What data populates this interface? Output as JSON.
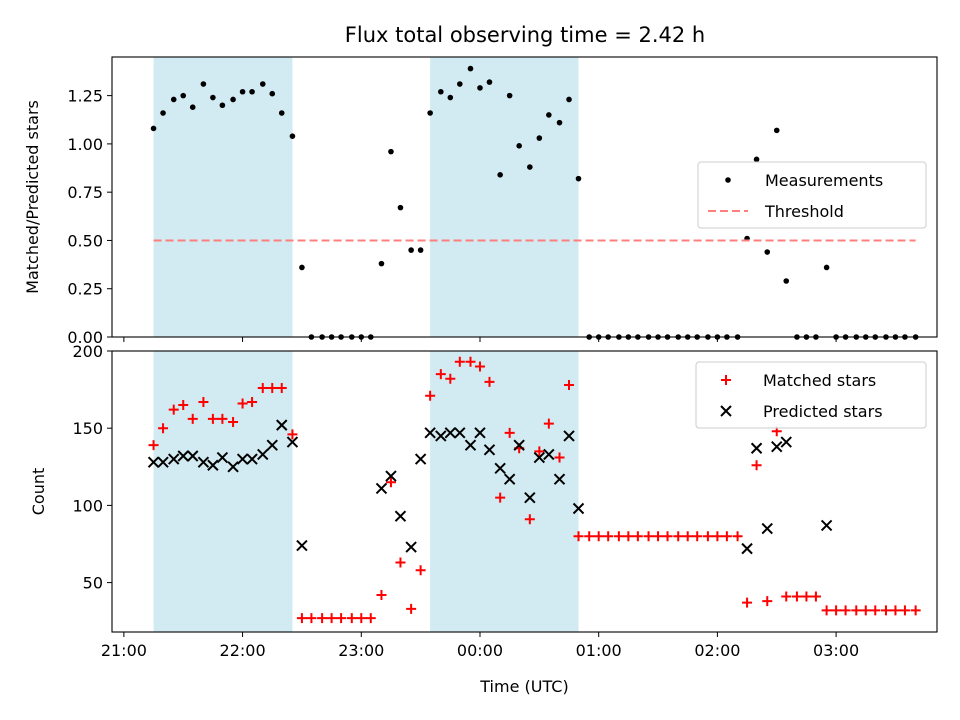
{
  "title": "Flux total observing time = 2.42 h",
  "chart_data": [
    {
      "type": "scatter",
      "ylabel": "Matched/Predicted stars",
      "xlim": [
        -0.1,
        6.85
      ],
      "ylim": [
        0,
        1.45
      ],
      "yticks": [
        0.0,
        0.25,
        0.5,
        0.75,
        1.0,
        1.25
      ],
      "ytick_labels": [
        "0.00",
        "0.25",
        "0.50",
        "0.75",
        "1.00",
        "1.25"
      ],
      "shaded_intervals": [
        [
          0.25,
          1.42
        ],
        [
          2.58,
          3.83
        ]
      ],
      "shade_color": "#add8e6",
      "legend_position": "center-right",
      "series": [
        {
          "name": "Measurements",
          "marker": "dot",
          "color": "#000000",
          "points": [
            [
              0.25,
              1.08
            ],
            [
              0.33,
              1.16
            ],
            [
              0.42,
              1.23
            ],
            [
              0.5,
              1.25
            ],
            [
              0.58,
              1.19
            ],
            [
              0.67,
              1.31
            ],
            [
              0.75,
              1.24
            ],
            [
              0.83,
              1.2
            ],
            [
              0.92,
              1.23
            ],
            [
              1.0,
              1.27
            ],
            [
              1.08,
              1.27
            ],
            [
              1.17,
              1.31
            ],
            [
              1.25,
              1.26
            ],
            [
              1.33,
              1.16
            ],
            [
              1.42,
              1.04
            ],
            [
              1.5,
              0.36
            ],
            [
              1.58,
              0
            ],
            [
              1.67,
              0
            ],
            [
              1.75,
              0
            ],
            [
              1.83,
              0
            ],
            [
              1.92,
              0
            ],
            [
              2.0,
              0
            ],
            [
              2.08,
              0
            ],
            [
              2.17,
              0.38
            ],
            [
              2.25,
              0.96
            ],
            [
              2.33,
              0.67
            ],
            [
              2.42,
              0.45
            ],
            [
              2.5,
              0.45
            ],
            [
              2.58,
              1.16
            ],
            [
              2.67,
              1.27
            ],
            [
              2.75,
              1.24
            ],
            [
              2.83,
              1.31
            ],
            [
              2.92,
              1.39
            ],
            [
              3.0,
              1.29
            ],
            [
              3.08,
              1.32
            ],
            [
              3.17,
              0.84
            ],
            [
              3.25,
              1.25
            ],
            [
              3.33,
              0.99
            ],
            [
              3.42,
              0.88
            ],
            [
              3.5,
              1.03
            ],
            [
              3.58,
              1.15
            ],
            [
              3.67,
              1.11
            ],
            [
              3.75,
              1.23
            ],
            [
              3.83,
              0.82
            ],
            [
              3.92,
              0
            ],
            [
              4.0,
              0
            ],
            [
              4.08,
              0
            ],
            [
              4.17,
              0
            ],
            [
              4.25,
              0
            ],
            [
              4.33,
              0
            ],
            [
              4.42,
              0
            ],
            [
              4.5,
              0
            ],
            [
              4.58,
              0
            ],
            [
              4.67,
              0
            ],
            [
              4.75,
              0
            ],
            [
              4.83,
              0
            ],
            [
              4.92,
              0
            ],
            [
              5.0,
              0
            ],
            [
              5.08,
              0
            ],
            [
              5.17,
              0
            ],
            [
              5.25,
              0.51
            ],
            [
              5.33,
              0.92
            ],
            [
              5.42,
              0.44
            ],
            [
              5.5,
              1.07
            ],
            [
              5.58,
              0.29
            ],
            [
              5.67,
              0
            ],
            [
              5.75,
              0
            ],
            [
              5.83,
              0
            ],
            [
              5.92,
              0.36
            ],
            [
              6.0,
              0
            ],
            [
              6.08,
              0
            ],
            [
              6.17,
              0
            ],
            [
              6.25,
              0
            ],
            [
              6.33,
              0
            ],
            [
              6.42,
              0
            ],
            [
              6.5,
              0
            ],
            [
              6.58,
              0
            ],
            [
              6.67,
              0
            ]
          ]
        },
        {
          "name": "Threshold",
          "marker": "dashed-line",
          "color": "#ff7f7f",
          "points": [
            [
              0.25,
              0.5
            ],
            [
              6.67,
              0.5
            ]
          ]
        }
      ]
    },
    {
      "type": "scatter",
      "ylabel": "Count",
      "xlabel": "Time (UTC)",
      "xlim": [
        -0.1,
        6.85
      ],
      "ylim": [
        18,
        200
      ],
      "yticks": [
        50,
        100,
        150,
        200
      ],
      "ytick_labels": [
        "50",
        "100",
        "150",
        "200"
      ],
      "xticks": [
        0,
        1,
        2,
        3,
        4,
        5,
        6
      ],
      "xtick_labels": [
        "21:00",
        "22:00",
        "23:00",
        "00:00",
        "01:00",
        "02:00",
        "03:00"
      ],
      "shaded_intervals": [
        [
          0.25,
          1.42
        ],
        [
          2.58,
          3.83
        ]
      ],
      "shade_color": "#add8e6",
      "legend_position": "top-right",
      "series": [
        {
          "name": "Matched stars",
          "marker": "plus",
          "color": "#ff0000",
          "points": [
            [
              0.25,
              139
            ],
            [
              0.33,
              150
            ],
            [
              0.42,
              162
            ],
            [
              0.5,
              165
            ],
            [
              0.58,
              156
            ],
            [
              0.67,
              167
            ],
            [
              0.75,
              156
            ],
            [
              0.83,
              156
            ],
            [
              0.92,
              154
            ],
            [
              1.0,
              166
            ],
            [
              1.08,
              167
            ],
            [
              1.17,
              176
            ],
            [
              1.25,
              176
            ],
            [
              1.33,
              176
            ],
            [
              1.42,
              146
            ],
            [
              1.5,
              27
            ],
            [
              1.58,
              27
            ],
            [
              1.67,
              27
            ],
            [
              1.75,
              27
            ],
            [
              1.83,
              27
            ],
            [
              1.92,
              27
            ],
            [
              2.0,
              27
            ],
            [
              2.08,
              27
            ],
            [
              2.17,
              42
            ],
            [
              2.25,
              115
            ],
            [
              2.33,
              63
            ],
            [
              2.42,
              33
            ],
            [
              2.5,
              58
            ],
            [
              2.58,
              171
            ],
            [
              2.67,
              185
            ],
            [
              2.75,
              182
            ],
            [
              2.83,
              193
            ],
            [
              2.92,
              193
            ],
            [
              3.0,
              190
            ],
            [
              3.08,
              180
            ],
            [
              3.17,
              105
            ],
            [
              3.25,
              147
            ],
            [
              3.33,
              137
            ],
            [
              3.42,
              91
            ],
            [
              3.5,
              135
            ],
            [
              3.58,
              153
            ],
            [
              3.67,
              131
            ],
            [
              3.75,
              178
            ],
            [
              3.83,
              80
            ],
            [
              3.92,
              80
            ],
            [
              4.0,
              80
            ],
            [
              4.08,
              80
            ],
            [
              4.17,
              80
            ],
            [
              4.25,
              80
            ],
            [
              4.33,
              80
            ],
            [
              4.42,
              80
            ],
            [
              4.5,
              80
            ],
            [
              4.58,
              80
            ],
            [
              4.67,
              80
            ],
            [
              4.75,
              80
            ],
            [
              4.83,
              80
            ],
            [
              4.92,
              80
            ],
            [
              5.0,
              80
            ],
            [
              5.08,
              80
            ],
            [
              5.17,
              80
            ],
            [
              5.25,
              37
            ],
            [
              5.33,
              126
            ],
            [
              5.42,
              38
            ],
            [
              5.5,
              148
            ],
            [
              5.58,
              41
            ],
            [
              5.67,
              41
            ],
            [
              5.75,
              41
            ],
            [
              5.83,
              41
            ],
            [
              5.92,
              32
            ],
            [
              6.0,
              32
            ],
            [
              6.08,
              32
            ],
            [
              6.17,
              32
            ],
            [
              6.25,
              32
            ],
            [
              6.33,
              32
            ],
            [
              6.42,
              32
            ],
            [
              6.5,
              32
            ],
            [
              6.58,
              32
            ],
            [
              6.67,
              32
            ]
          ]
        },
        {
          "name": "Predicted stars",
          "marker": "x",
          "color": "#000000",
          "points": [
            [
              0.25,
              128
            ],
            [
              0.33,
              128
            ],
            [
              0.42,
              130
            ],
            [
              0.5,
              132
            ],
            [
              0.58,
              132
            ],
            [
              0.67,
              128
            ],
            [
              0.75,
              126
            ],
            [
              0.83,
              131
            ],
            [
              0.92,
              125
            ],
            [
              1.0,
              130
            ],
            [
              1.08,
              130
            ],
            [
              1.17,
              133
            ],
            [
              1.25,
              139
            ],
            [
              1.33,
              152
            ],
            [
              1.42,
              141
            ],
            [
              1.5,
              74
            ],
            [
              2.17,
              111
            ],
            [
              2.25,
              119
            ],
            [
              2.33,
              93
            ],
            [
              2.42,
              73
            ],
            [
              2.5,
              130
            ],
            [
              2.58,
              147
            ],
            [
              2.67,
              145
            ],
            [
              2.75,
              147
            ],
            [
              2.83,
              147
            ],
            [
              2.92,
              139
            ],
            [
              3.0,
              147
            ],
            [
              3.08,
              136
            ],
            [
              3.17,
              124
            ],
            [
              3.25,
              117
            ],
            [
              3.33,
              139
            ],
            [
              3.42,
              105
            ],
            [
              3.5,
              131
            ],
            [
              3.58,
              133
            ],
            [
              3.67,
              117
            ],
            [
              3.75,
              145
            ],
            [
              3.83,
              98
            ],
            [
              5.25,
              72
            ],
            [
              5.33,
              137
            ],
            [
              5.42,
              85
            ],
            [
              5.5,
              138
            ],
            [
              5.58,
              141
            ],
            [
              5.92,
              87
            ]
          ]
        }
      ]
    }
  ]
}
